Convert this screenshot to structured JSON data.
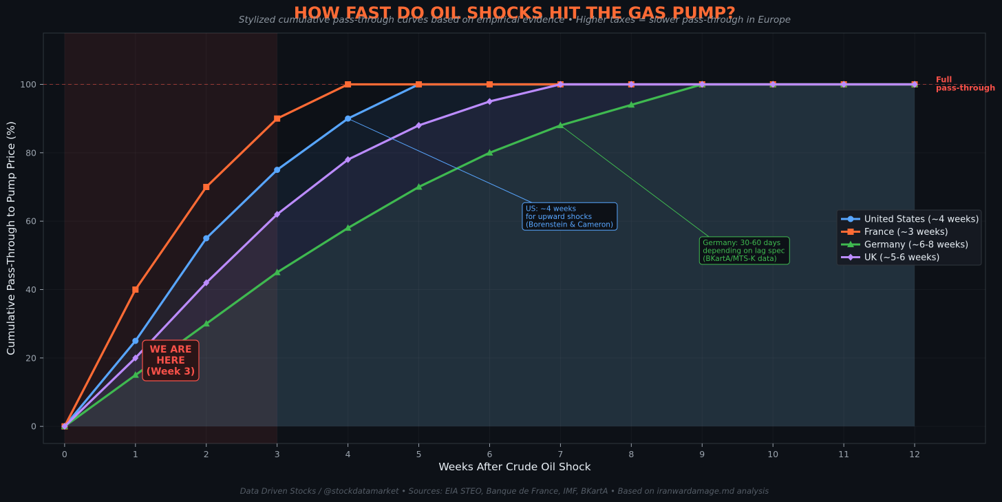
{
  "header": {
    "title": "HOW FAST DO OIL SHOCKS HIT THE GAS PUMP?",
    "subtitle": "Stylized cumulative pass-through curves based on empirical evidence  •  Higher taxes = slower pass-through in Europe"
  },
  "footer": {
    "credit": "Data Driven Stocks / @stockdatamarket  •  Sources: EIA STEO, Banque de France, IMF, BKartA  •  Based on iranwardamage.md analysis"
  },
  "colors": {
    "background": "#0d1117",
    "plot_background": "#0d1117",
    "title": "#ff6b35",
    "us": "#58a6ff",
    "france": "#ff6b35",
    "germany": "#3fb950",
    "uk": "#bc8cff",
    "alert": "#f85149",
    "frame": "#30363d"
  },
  "chart_data": {
    "type": "line",
    "xlabel": "Weeks After Crude Oil Shock",
    "ylabel": "Cumulative Pass-Through to Pump Price (%)",
    "xlim": [
      -0.3,
      13
    ],
    "ylim": [
      -5,
      115
    ],
    "xticks": [
      0,
      1,
      2,
      3,
      4,
      5,
      6,
      7,
      8,
      9,
      10,
      11,
      12
    ],
    "yticks": [
      0,
      20,
      40,
      60,
      80,
      100
    ],
    "grid": true,
    "legend_position": "center-right",
    "shaded_region": {
      "x_start": 0,
      "x_end": 3,
      "label_lines": [
        "WE ARE",
        "HERE",
        "(Week 3)"
      ]
    },
    "reference_line": {
      "y": 100,
      "label_lines": [
        "Full",
        "pass-through"
      ]
    },
    "x": [
      0,
      1,
      2,
      3,
      4,
      5,
      6,
      7,
      8,
      9,
      10,
      11,
      12
    ],
    "series": [
      {
        "name": "United States (~4 weeks)",
        "key": "us",
        "marker": "circle",
        "values": [
          0,
          25,
          55,
          75,
          90,
          100,
          100,
          100,
          100,
          100,
          100,
          100,
          100
        ]
      },
      {
        "name": "France (~3 weeks)",
        "key": "france",
        "marker": "square",
        "values": [
          0,
          40,
          70,
          90,
          100,
          100,
          100,
          100,
          100,
          100,
          100,
          100,
          100
        ]
      },
      {
        "name": "Germany (~6-8 weeks)",
        "key": "germany",
        "marker": "triangle",
        "values": [
          0,
          15,
          30,
          45,
          58,
          70,
          80,
          88,
          94,
          100,
          100,
          100,
          100
        ]
      },
      {
        "name": "UK (~5-6 weeks)",
        "key": "uk",
        "marker": "diamond",
        "values": [
          0,
          20,
          42,
          62,
          78,
          88,
          95,
          100,
          100,
          100,
          100,
          100,
          100
        ]
      }
    ],
    "annotations": [
      {
        "key": "us",
        "target": [
          4,
          90
        ],
        "text_at": [
          6.5,
          63
        ],
        "lines": [
          "US: ~4 weeks",
          "for upward shocks",
          "(Borenstein & Cameron)"
        ]
      },
      {
        "key": "germany",
        "target": [
          7,
          88
        ],
        "text_at": [
          9,
          53
        ],
        "lines": [
          "Germany: 30-60 days",
          "depending on lag spec",
          "(BKartA/MTS-K data)"
        ]
      }
    ]
  }
}
